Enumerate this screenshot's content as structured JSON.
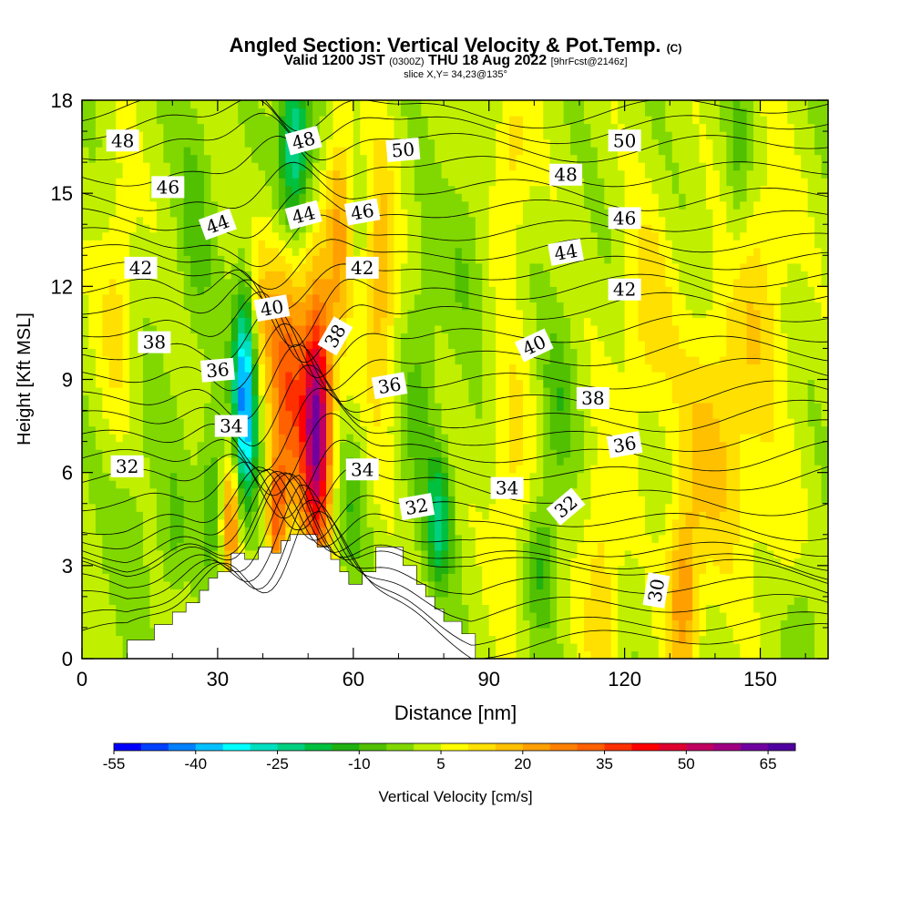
{
  "chart_data": {
    "type": "heatmap",
    "title": "Angled Section: Vertical Velocity & Pot.Temp.",
    "title_unit": "(C)",
    "subtitle_valid": "Valid 1200 JST",
    "subtitle_utc": "(0300Z)",
    "subtitle_date": "THU 18 Aug 2022",
    "subtitle_fcst": "[9hrFcst@2146z]",
    "slice_label": "slice X,Y= 34,23@135°",
    "xlabel": "Distance [nm]",
    "ylabel": "Height [Kft MSL]",
    "xlim": [
      0,
      165
    ],
    "ylim": [
      0,
      18
    ],
    "x_ticks": [
      {
        "v": 0,
        "label": "0"
      },
      {
        "v": 30,
        "label": "30"
      },
      {
        "v": 60,
        "label": "60"
      },
      {
        "v": 90,
        "label": "90"
      },
      {
        "v": 120,
        "label": "120"
      },
      {
        "v": 150,
        "label": "150"
      }
    ],
    "y_ticks": [
      {
        "v": 0,
        "label": "0"
      },
      {
        "v": 3,
        "label": "3"
      },
      {
        "v": 6,
        "label": "6"
      },
      {
        "v": 9,
        "label": "9"
      },
      {
        "v": 12,
        "label": "12"
      },
      {
        "v": 15,
        "label": "15"
      },
      {
        "v": 18,
        "label": "18"
      }
    ],
    "colorbar": {
      "label": "Vertical Velocity [cm/s]",
      "min": -55,
      "max": 70,
      "step": 5,
      "tick_labels": [
        "-55",
        "-40",
        "-25",
        "-10",
        "5",
        "20",
        "35",
        "50",
        "65"
      ],
      "colors": [
        "#0000ff",
        "#0040ff",
        "#0080ff",
        "#00c0ff",
        "#00ffff",
        "#00e0c0",
        "#00d080",
        "#00c040",
        "#20b010",
        "#50c000",
        "#80d800",
        "#c0f000",
        "#ffff00",
        "#ffe000",
        "#ffc000",
        "#ffa000",
        "#ff8000",
        "#ff6000",
        "#ff3000",
        "#ff0000",
        "#e00030",
        "#c00060",
        "#a00080",
        "#7000a0",
        "#5000a0"
      ]
    },
    "background_value": 2,
    "velocity_features": [
      {
        "x": 36,
        "y": 8.5,
        "sx": 1.8,
        "sy": 2.5,
        "v": -45
      },
      {
        "x": 52,
        "y": 7.5,
        "sx": 2.2,
        "sy": 2.8,
        "v": 60
      },
      {
        "x": 46,
        "y": 9,
        "sx": 3,
        "sy": 3,
        "v": 30
      },
      {
        "x": 33,
        "y": 4.5,
        "sx": 1.5,
        "sy": 1.5,
        "v": 25
      },
      {
        "x": 43,
        "y": 4.5,
        "sx": 1.5,
        "sy": 1.5,
        "v": 28
      },
      {
        "x": 47,
        "y": 16.5,
        "sx": 2.5,
        "sy": 2,
        "v": -30
      },
      {
        "x": 57,
        "y": 14,
        "sx": 2,
        "sy": 2.5,
        "v": 20
      },
      {
        "x": 66,
        "y": 12,
        "sx": 2.5,
        "sy": 3,
        "v": 18
      },
      {
        "x": 29,
        "y": 5.5,
        "sx": 2,
        "sy": 2,
        "v": -12
      },
      {
        "x": 40,
        "y": 11.5,
        "sx": 3,
        "sy": 2,
        "v": 12
      },
      {
        "x": 79,
        "y": 4.5,
        "sx": 2,
        "sy": 1.5,
        "v": -22
      },
      {
        "x": 102,
        "y": 3,
        "sx": 2.5,
        "sy": 1.5,
        "v": -12
      },
      {
        "x": 105,
        "y": 8,
        "sx": 2.5,
        "sy": 2,
        "v": -10
      },
      {
        "x": 95,
        "y": 6,
        "sx": 3,
        "sy": 3,
        "v": 10
      },
      {
        "x": 115,
        "y": 2.5,
        "sx": 3,
        "sy": 3,
        "v": 12
      },
      {
        "x": 140,
        "y": 7,
        "sx": 6,
        "sy": 3,
        "v": 14
      },
      {
        "x": 150,
        "y": 12,
        "sx": 5,
        "sy": 3,
        "v": 10
      },
      {
        "x": 125,
        "y": 11,
        "sx": 4,
        "sy": 2.5,
        "v": 11
      },
      {
        "x": 95,
        "y": 16,
        "sx": 3,
        "sy": 2,
        "v": 11
      },
      {
        "x": 145,
        "y": 16,
        "sx": 2,
        "sy": 2.5,
        "v": -9
      },
      {
        "x": 133,
        "y": 2,
        "sx": 2.5,
        "sy": 2,
        "v": 22
      },
      {
        "x": 12,
        "y": 5,
        "sx": 4,
        "sy": 3,
        "v": -5
      },
      {
        "x": 25,
        "y": 14,
        "sx": 3,
        "sy": 3,
        "v": -8
      },
      {
        "x": 20,
        "y": 4,
        "sx": 2,
        "sy": 1.5,
        "v": -8
      },
      {
        "x": 8,
        "y": 11.5,
        "sx": 3,
        "sy": 3,
        "v": 10
      },
      {
        "x": 75,
        "y": 9,
        "sx": 3,
        "sy": 3,
        "v": -8
      },
      {
        "x": 155,
        "y": 4,
        "sx": 5,
        "sy": 2,
        "v": 6
      },
      {
        "x": 160,
        "y": 2,
        "sx": 3,
        "sy": 2,
        "v": -6
      },
      {
        "x": 85,
        "y": 13,
        "sx": 3,
        "sy": 2,
        "v": -6
      },
      {
        "x": 60,
        "y": 5,
        "sx": 2,
        "sy": 1.5,
        "v": -10
      }
    ],
    "terrain": [
      [
        10,
        0.6
      ],
      [
        16,
        0.6
      ],
      [
        16,
        1.1
      ],
      [
        20,
        1.1
      ],
      [
        20,
        1.5
      ],
      [
        23,
        1.5
      ],
      [
        23,
        1.8
      ],
      [
        26,
        1.8
      ],
      [
        26,
        2.2
      ],
      [
        28,
        2.2
      ],
      [
        28,
        2.6
      ],
      [
        30,
        2.6
      ],
      [
        30,
        2.8
      ],
      [
        33,
        2.8
      ],
      [
        33,
        3.4
      ],
      [
        36,
        3.4
      ],
      [
        36,
        3.2
      ],
      [
        39,
        3.2
      ],
      [
        39,
        3.6
      ],
      [
        42,
        3.6
      ],
      [
        42,
        3.4
      ],
      [
        44,
        3.4
      ],
      [
        44,
        3.8
      ],
      [
        46,
        3.8
      ],
      [
        46,
        4
      ],
      [
        52,
        4
      ],
      [
        52,
        3.6
      ],
      [
        55,
        3.6
      ],
      [
        55,
        3.2
      ],
      [
        57,
        3.2
      ],
      [
        57,
        2.8
      ],
      [
        59,
        2.8
      ],
      [
        59,
        2.4
      ],
      [
        62,
        2.4
      ],
      [
        62,
        2.8
      ],
      [
        65,
        2.8
      ],
      [
        65,
        3.6
      ],
      [
        71,
        3.6
      ],
      [
        71,
        3
      ],
      [
        74,
        3
      ],
      [
        74,
        2.4
      ],
      [
        76,
        2.4
      ],
      [
        76,
        2
      ],
      [
        78,
        2
      ],
      [
        78,
        1.6
      ],
      [
        80,
        1.6
      ],
      [
        80,
        1.2
      ],
      [
        84,
        1.2
      ],
      [
        84,
        0.8
      ],
      [
        87,
        0.8
      ],
      [
        87,
        0.3
      ]
    ],
    "isentropes": [
      {
        "value": 30,
        "base": 1.6,
        "label": {
          "x": 127,
          "y": 2.2,
          "rot": -80
        }
      },
      {
        "value": 32,
        "base": 4.4,
        "label": {
          "x": 10,
          "y": 6.2,
          "rot": 0
        }
      },
      {
        "value": 32,
        "base": 4.4,
        "label": {
          "x": 74,
          "y": 4.9,
          "rot": -10
        }
      },
      {
        "value": 32,
        "base": 4.4,
        "label": {
          "x": 107,
          "y": 4.9,
          "rot": -40
        }
      },
      {
        "value": 34,
        "base": 6.0,
        "label": {
          "x": 33,
          "y": 7.5,
          "rot": 0
        }
      },
      {
        "value": 34,
        "base": 6.0,
        "label": {
          "x": 62,
          "y": 6.1,
          "rot": 0
        }
      },
      {
        "value": 34,
        "base": 6.0,
        "label": {
          "x": 94,
          "y": 5.5,
          "rot": 0
        }
      },
      {
        "value": 36,
        "base": 7.2,
        "label": {
          "x": 30,
          "y": 9.3,
          "rot": -5
        }
      },
      {
        "value": 36,
        "base": 7.2,
        "label": {
          "x": 68,
          "y": 8.8,
          "rot": -10
        }
      },
      {
        "value": 36,
        "base": 7.2,
        "label": {
          "x": 120,
          "y": 6.9,
          "rot": -10
        }
      },
      {
        "value": 38,
        "base": 8.4,
        "label": {
          "x": 16,
          "y": 10.2,
          "rot": 0
        }
      },
      {
        "value": 38,
        "base": 8.4,
        "label": {
          "x": 56,
          "y": 10.4,
          "rot": -60
        }
      },
      {
        "value": 38,
        "base": 8.4,
        "label": {
          "x": 113,
          "y": 8.4,
          "rot": 0
        }
      },
      {
        "value": 40,
        "base": 9.8,
        "label": {
          "x": 42,
          "y": 11.3,
          "rot": -10
        }
      },
      {
        "value": 40,
        "base": 9.8,
        "label": {
          "x": 100,
          "y": 10.1,
          "rot": -25
        }
      },
      {
        "value": 42,
        "base": 11.2,
        "label": {
          "x": 13,
          "y": 12.6,
          "rot": 0
        }
      },
      {
        "value": 42,
        "base": 11.2,
        "label": {
          "x": 62,
          "y": 12.6,
          "rot": 0
        }
      },
      {
        "value": 42,
        "base": 11.2,
        "label": {
          "x": 120,
          "y": 11.9,
          "rot": 0
        }
      },
      {
        "value": 44,
        "base": 12.4,
        "label": {
          "x": 30,
          "y": 14.0,
          "rot": -20
        }
      },
      {
        "value": 44,
        "base": 12.4,
        "label": {
          "x": 49,
          "y": 14.3,
          "rot": -15
        }
      },
      {
        "value": 44,
        "base": 12.4,
        "label": {
          "x": 107,
          "y": 13.1,
          "rot": -10
        }
      },
      {
        "value": 46,
        "base": 13.6,
        "label": {
          "x": 19,
          "y": 15.2,
          "rot": 0
        }
      },
      {
        "value": 46,
        "base": 13.6,
        "label": {
          "x": 62,
          "y": 14.4,
          "rot": -10
        }
      },
      {
        "value": 46,
        "base": 13.6,
        "label": {
          "x": 120,
          "y": 14.2,
          "rot": 0
        }
      },
      {
        "value": 48,
        "base": 15.0,
        "label": {
          "x": 9,
          "y": 16.7,
          "rot": 0
        }
      },
      {
        "value": 48,
        "base": 15.0,
        "label": {
          "x": 49,
          "y": 16.7,
          "rot": -15
        }
      },
      {
        "value": 48,
        "base": 15.0,
        "label": {
          "x": 107,
          "y": 15.6,
          "rot": 0
        }
      },
      {
        "value": 50,
        "base": 16.6,
        "label": {
          "x": 71,
          "y": 16.4,
          "rot": -5
        }
      },
      {
        "value": 50,
        "base": 16.6,
        "label": {
          "x": 120,
          "y": 16.7,
          "rot": 0
        }
      }
    ]
  }
}
